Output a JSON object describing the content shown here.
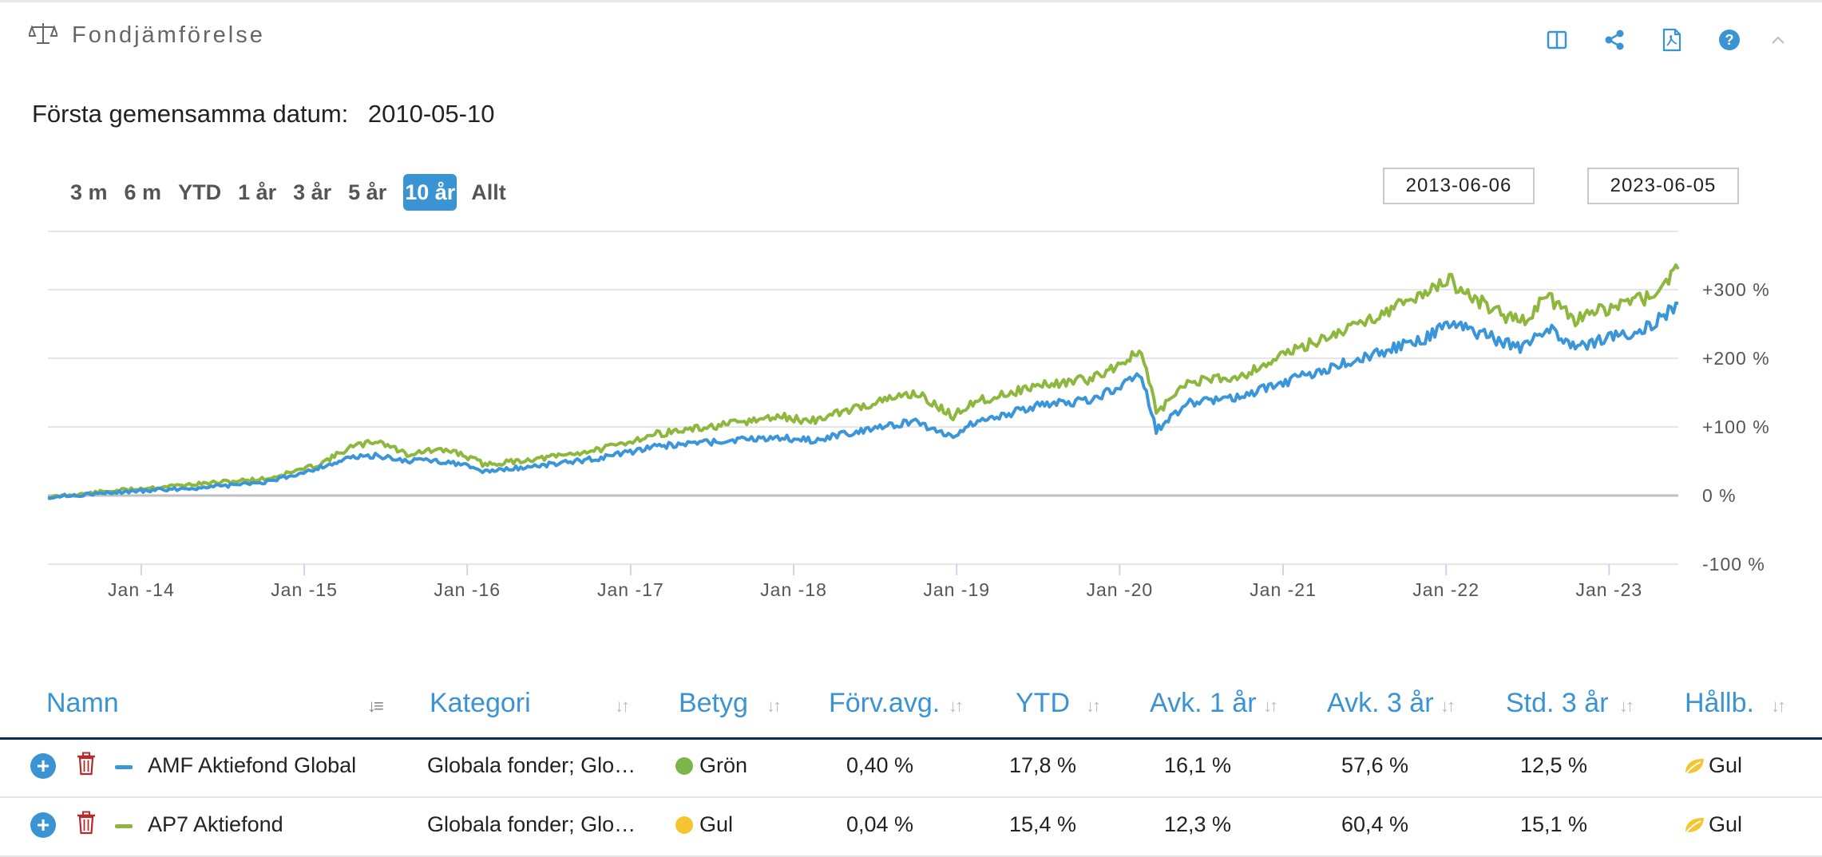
{
  "widget": {
    "title": "Fondjämförelse",
    "title_icon": "scale-icon",
    "toolbar": [
      "columns-icon",
      "share-icon",
      "pdf-icon",
      "help-icon",
      "collapse-icon"
    ]
  },
  "first_common_date": {
    "label": "Första gemensamma datum:",
    "value": "2010-05-10"
  },
  "range_buttons": [
    {
      "label": "3 m"
    },
    {
      "label": "6 m"
    },
    {
      "label": "YTD"
    },
    {
      "label": "1 år"
    },
    {
      "label": "3 år"
    },
    {
      "label": "5 år"
    },
    {
      "label": "10 år",
      "active": true
    },
    {
      "label": "Allt"
    }
  ],
  "date_range": {
    "from": "2013-06-06",
    "to": "2023-06-05"
  },
  "chart_data": {
    "type": "line",
    "x_ticks": [
      "Jan -14",
      "Jan -15",
      "Jan -16",
      "Jan -17",
      "Jan -18",
      "Jan -19",
      "Jan -20",
      "Jan -21",
      "Jan -22",
      "Jan -23"
    ],
    "y_ticks": [
      "+300 %",
      "+200 %",
      "+100 %",
      "0 %",
      "-100 %"
    ],
    "ylim": [
      -100,
      300
    ],
    "x_range": [
      "2013-06-06",
      "2023-06-05"
    ],
    "legend": "none",
    "grid": true,
    "series": [
      {
        "name": "AP7 Aktiefond",
        "color": "#8db83d",
        "points": [
          [
            "2013-06-06",
            -3
          ],
          [
            "2013-10-01",
            5
          ],
          [
            "2014-02-01",
            12
          ],
          [
            "2014-06-01",
            18
          ],
          [
            "2014-10-15",
            25
          ],
          [
            "2015-02-01",
            45
          ],
          [
            "2015-04-15",
            70
          ],
          [
            "2015-06-15",
            80
          ],
          [
            "2015-08-20",
            60
          ],
          [
            "2015-10-01",
            65
          ],
          [
            "2015-12-01",
            65
          ],
          [
            "2016-02-10",
            45
          ],
          [
            "2016-06-27",
            55
          ],
          [
            "2016-11-01",
            68
          ],
          [
            "2017-03-01",
            90
          ],
          [
            "2017-07-01",
            100
          ],
          [
            "2017-12-01",
            115
          ],
          [
            "2018-02-08",
            108
          ],
          [
            "2018-06-01",
            130
          ],
          [
            "2018-10-01",
            150
          ],
          [
            "2018-12-24",
            115
          ],
          [
            "2019-02-01",
            135
          ],
          [
            "2019-07-01",
            160
          ],
          [
            "2019-11-01",
            170
          ],
          [
            "2020-02-19",
            210
          ],
          [
            "2020-03-23",
            120
          ],
          [
            "2020-06-01",
            165
          ],
          [
            "2020-10-01",
            175
          ],
          [
            "2021-01-01",
            205
          ],
          [
            "2021-06-01",
            245
          ],
          [
            "2021-11-15",
            295
          ],
          [
            "2022-01-03",
            315
          ],
          [
            "2022-03-01",
            290
          ],
          [
            "2022-06-16",
            250
          ],
          [
            "2022-08-15",
            290
          ],
          [
            "2022-10-12",
            255
          ],
          [
            "2023-02-01",
            280
          ],
          [
            "2023-04-01",
            290
          ],
          [
            "2023-06-05",
            330
          ]
        ]
      },
      {
        "name": "AMF Aktiefond Global",
        "color": "#3a96d8",
        "points": [
          [
            "2013-06-06",
            -2
          ],
          [
            "2013-10-01",
            3
          ],
          [
            "2014-02-01",
            8
          ],
          [
            "2014-06-01",
            12
          ],
          [
            "2014-10-15",
            20
          ],
          [
            "2015-02-01",
            40
          ],
          [
            "2015-04-15",
            55
          ],
          [
            "2015-06-15",
            58
          ],
          [
            "2015-08-20",
            50
          ],
          [
            "2015-10-01",
            52
          ],
          [
            "2015-12-01",
            48
          ],
          [
            "2016-02-10",
            35
          ],
          [
            "2016-06-27",
            45
          ],
          [
            "2016-11-01",
            55
          ],
          [
            "2017-03-01",
            72
          ],
          [
            "2017-07-01",
            78
          ],
          [
            "2017-12-01",
            85
          ],
          [
            "2018-02-08",
            80
          ],
          [
            "2018-06-01",
            95
          ],
          [
            "2018-10-01",
            108
          ],
          [
            "2018-12-24",
            85
          ],
          [
            "2019-02-01",
            105
          ],
          [
            "2019-07-01",
            130
          ],
          [
            "2019-11-01",
            140
          ],
          [
            "2020-02-19",
            175
          ],
          [
            "2020-03-23",
            95
          ],
          [
            "2020-06-01",
            135
          ],
          [
            "2020-10-01",
            145
          ],
          [
            "2021-01-01",
            165
          ],
          [
            "2021-06-01",
            195
          ],
          [
            "2021-11-15",
            230
          ],
          [
            "2022-01-03",
            250
          ],
          [
            "2022-03-01",
            240
          ],
          [
            "2022-06-16",
            215
          ],
          [
            "2022-08-15",
            245
          ],
          [
            "2022-10-12",
            215
          ],
          [
            "2023-02-01",
            235
          ],
          [
            "2023-04-01",
            245
          ],
          [
            "2023-06-05",
            280
          ]
        ]
      }
    ]
  },
  "table": {
    "columns": [
      "Namn",
      "Kategori",
      "Betyg",
      "Förv.avg.",
      "YTD",
      "Avk. 1 år",
      "Avk. 3 år",
      "Std. 3 år",
      "Hållb."
    ],
    "rows": [
      {
        "name": "AMF Aktiefond Global",
        "line_color": "#3a96d8",
        "category": "Globala fonder; Glo…",
        "rating": "Grön",
        "rating_color": "#7ab648",
        "fee": "0,40 %",
        "ytd": "17,8 %",
        "r1": "16,1 %",
        "r3": "57,6 %",
        "std3": "12,5 %",
        "sust": "Gul"
      },
      {
        "name": "AP7 Aktiefond",
        "line_color": "#8db83d",
        "category": "Globala fonder; Glo…",
        "rating": "Gul",
        "rating_color": "#f4c531",
        "fee": "0,04 %",
        "ytd": "15,4 %",
        "r1": "12,3 %",
        "r3": "60,4 %",
        "std3": "15,1 %",
        "sust": "Gul"
      }
    ]
  }
}
